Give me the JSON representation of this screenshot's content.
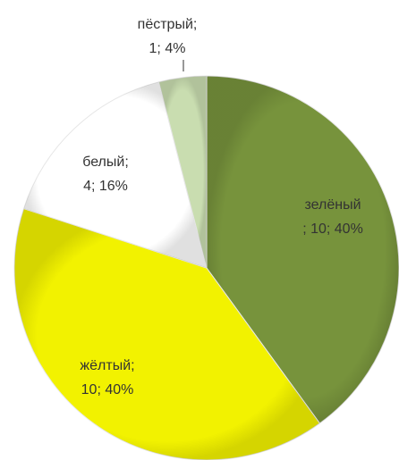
{
  "chart_data": {
    "type": "pie",
    "values": [
      10,
      10,
      4,
      1
    ],
    "colors": [
      "#77933c",
      "#f2f200",
      "#ffffff",
      "#c9ddb0"
    ],
    "data_labels": [
      [
        "зелёный",
        "; 10; 40%"
      ],
      [
        "жёлтый;",
        "10; 40%"
      ],
      [
        "белый;",
        "4; 16%"
      ],
      [
        "пёстрый;",
        "1; 4%"
      ]
    ]
  }
}
